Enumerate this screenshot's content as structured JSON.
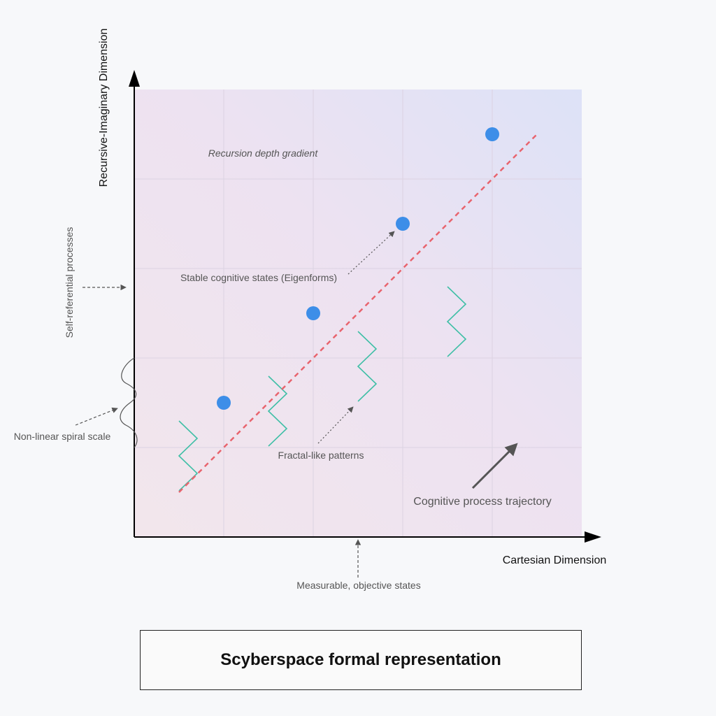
{
  "axes": {
    "x_label": "Cartesian Dimension",
    "y_label": "Recursive-Imaginary Dimension"
  },
  "annotations": {
    "recursion_gradient": "Recursion depth gradient",
    "eigenforms": "Stable cognitive states (Eigenforms)",
    "fractal": "Fractal-like patterns",
    "trajectory": "Cognitive process trajectory",
    "self_referential": "Self-referential processes",
    "spiral_scale": "Non-linear spiral scale",
    "measurable": "Measurable, objective states"
  },
  "caption": "Scyberspace formal representation",
  "colors": {
    "points": "#3d8ee8",
    "trend": "#e8646e",
    "fractal": "#3fbfa6",
    "axis": "#000000",
    "annotation": "#555555"
  },
  "points_count": 4
}
